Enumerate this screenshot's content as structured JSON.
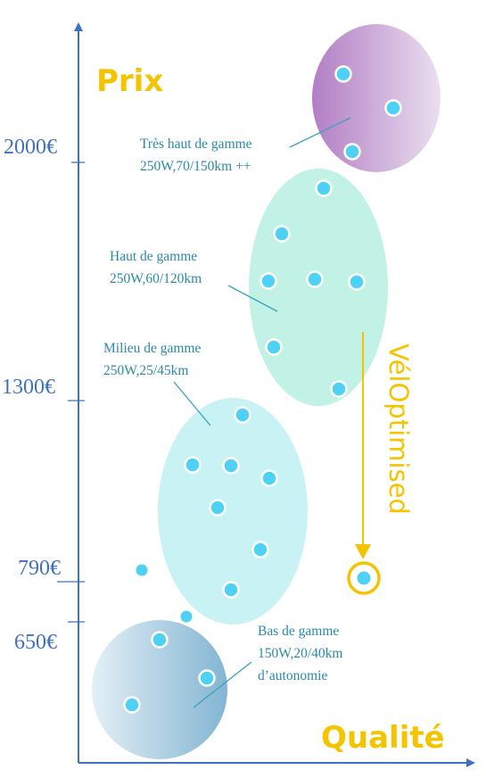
{
  "axes": {
    "y_title": "Prix",
    "x_title": "Qualité",
    "y_ticks": [
      "2000€",
      "1300€",
      "790€",
      "650€"
    ],
    "axis_color": "#3f71c3",
    "title_color": "#f5c400"
  },
  "segments": [
    {
      "id": "tres-haut",
      "line1": "Très haut de gamme",
      "line2": "250W,70/150km ++",
      "line3": "",
      "color": "#b083c9"
    },
    {
      "id": "haut",
      "line1": "Haut de gamme",
      "line2": "250W,60/120km",
      "line3": "",
      "color": "#a9ecd9"
    },
    {
      "id": "milieu",
      "line1": "Milieu de gamme",
      "line2": "250W,25/45km",
      "line3": "",
      "color": "#b6eef0"
    },
    {
      "id": "bas",
      "line1": "Bas de gamme",
      "line2": "150W,20/40km",
      "line3": "d’autonomie",
      "color": "#8fbdd6"
    }
  ],
  "highlight": {
    "label": "VélOptimised",
    "color": "#f5c400",
    "point_color": "#4fd0f5"
  },
  "label_color": "#2a8aa8"
}
